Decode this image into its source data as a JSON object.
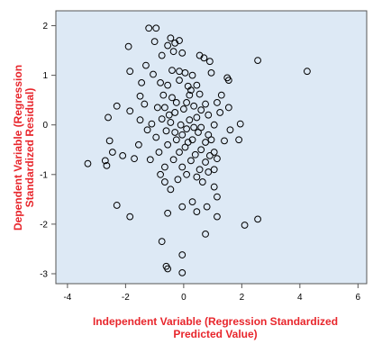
{
  "chart_data": {
    "type": "scatter",
    "title": "",
    "xlabel_lines": [
      "Independent Variable (Regression Standardized",
      "Predicted Value)"
    ],
    "ylabel_lines": [
      "Dependent Variable (Regression",
      "Standardized Residual)"
    ],
    "xlim": [
      -4.4,
      6.3
    ],
    "ylim": [
      -3.2,
      2.3
    ],
    "xticks": [
      -4,
      -2,
      0,
      2,
      4,
      6
    ],
    "yticks": [
      -3,
      -2,
      -1,
      0,
      1,
      2
    ],
    "x_tick_labels": [
      "-4",
      "-2",
      "0",
      "2",
      "4",
      "6"
    ],
    "y_tick_labels": [
      "-3",
      "-2",
      "-1",
      "0",
      "1",
      "2"
    ],
    "grid": false,
    "legend": false,
    "colors": {
      "plot_background": "#dde9f5",
      "marker": "#000000",
      "axis_title": "#e8262c"
    },
    "series": [
      {
        "marker": "hollow-circle",
        "points": [
          [
            -1.2,
            1.95
          ],
          [
            -0.95,
            1.95
          ],
          [
            -0.45,
            1.75
          ],
          [
            -0.15,
            1.7
          ],
          [
            -0.3,
            1.65
          ],
          [
            -1.9,
            1.58
          ],
          [
            -1.0,
            1.68
          ],
          [
            -0.55,
            1.6
          ],
          [
            -1.3,
            1.2
          ],
          [
            -0.75,
            1.4
          ],
          [
            -0.35,
            1.48
          ],
          [
            -0.05,
            1.45
          ],
          [
            0.55,
            1.4
          ],
          [
            0.7,
            1.35
          ],
          [
            0.9,
            1.28
          ],
          [
            2.55,
            1.3
          ],
          [
            4.25,
            1.08
          ],
          [
            1.5,
            0.95
          ],
          [
            1.55,
            0.9
          ],
          [
            -1.85,
            1.08
          ],
          [
            -1.05,
            1.02
          ],
          [
            -0.4,
            1.1
          ],
          [
            -0.15,
            1.08
          ],
          [
            0.05,
            1.05
          ],
          [
            0.3,
            1.0
          ],
          [
            0.95,
            1.05
          ],
          [
            -1.45,
            0.85
          ],
          [
            -0.8,
            0.85
          ],
          [
            -0.55,
            0.8
          ],
          [
            0.15,
            0.78
          ],
          [
            0.45,
            0.8
          ],
          [
            -1.5,
            0.58
          ],
          [
            -0.7,
            0.6
          ],
          [
            -0.4,
            0.55
          ],
          [
            0.2,
            0.6
          ],
          [
            0.55,
            0.62
          ],
          [
            1.3,
            0.6
          ],
          [
            -2.3,
            0.38
          ],
          [
            -1.35,
            0.42
          ],
          [
            -0.9,
            0.35
          ],
          [
            -0.25,
            0.45
          ],
          [
            0.0,
            0.32
          ],
          [
            0.35,
            0.38
          ],
          [
            0.75,
            0.42
          ],
          [
            1.15,
            0.45
          ],
          [
            1.55,
            0.35
          ],
          [
            -1.85,
            0.28
          ],
          [
            -2.6,
            0.15
          ],
          [
            -1.5,
            0.1
          ],
          [
            -0.75,
            0.12
          ],
          [
            0.45,
            0.15
          ],
          [
            0.85,
            0.2
          ],
          [
            1.25,
            0.25
          ],
          [
            -1.1,
            0.02
          ],
          [
            -0.45,
            0.05
          ],
          [
            -0.1,
            0.0
          ],
          [
            0.2,
            0.1
          ],
          [
            0.6,
            -0.05
          ],
          [
            1.05,
            0.0
          ],
          [
            1.95,
            0.02
          ],
          [
            -1.25,
            -0.1
          ],
          [
            -0.6,
            -0.12
          ],
          [
            0.1,
            -0.08
          ],
          [
            0.5,
            -0.15
          ],
          [
            0.85,
            -0.2
          ],
          [
            1.6,
            -0.1
          ],
          [
            -0.95,
            -0.25
          ],
          [
            -0.25,
            -0.3
          ],
          [
            0.3,
            -0.3
          ],
          [
            0.75,
            -0.35
          ],
          [
            1.4,
            -0.32
          ],
          [
            1.9,
            -0.3
          ],
          [
            -2.55,
            -0.32
          ],
          [
            -1.55,
            -0.4
          ],
          [
            -0.55,
            -0.4
          ],
          [
            0.05,
            -0.45
          ],
          [
            0.6,
            -0.5
          ],
          [
            1.05,
            -0.55
          ],
          [
            -0.85,
            -0.55
          ],
          [
            -0.15,
            -0.55
          ],
          [
            0.4,
            -0.6
          ],
          [
            0.9,
            -0.62
          ],
          [
            -2.1,
            -0.62
          ],
          [
            -2.45,
            -0.55
          ],
          [
            -1.15,
            -0.7
          ],
          [
            -0.35,
            -0.7
          ],
          [
            0.25,
            -0.72
          ],
          [
            0.75,
            -0.75
          ],
          [
            1.15,
            -0.68
          ],
          [
            -3.3,
            -0.78
          ],
          [
            -2.7,
            -0.72
          ],
          [
            -2.65,
            -0.82
          ],
          [
            -1.7,
            -0.68
          ],
          [
            -0.65,
            -0.85
          ],
          [
            -0.05,
            -0.85
          ],
          [
            0.55,
            -0.9
          ],
          [
            1.05,
            -0.9
          ],
          [
            -0.8,
            -1.0
          ],
          [
            0.1,
            -1.0
          ],
          [
            0.45,
            -1.05
          ],
          [
            0.85,
            -0.95
          ],
          [
            -0.65,
            -1.15
          ],
          [
            -0.2,
            -1.1
          ],
          [
            0.65,
            -1.15
          ],
          [
            -0.45,
            -1.3
          ],
          [
            1.05,
            -1.25
          ],
          [
            1.15,
            -1.45
          ],
          [
            0.3,
            -1.55
          ],
          [
            -0.05,
            -1.65
          ],
          [
            0.8,
            -1.65
          ],
          [
            -0.55,
            -1.78
          ],
          [
            -2.3,
            -1.62
          ],
          [
            -1.85,
            -1.85
          ],
          [
            0.45,
            -1.75
          ],
          [
            1.15,
            -1.85
          ],
          [
            2.1,
            -2.02
          ],
          [
            2.55,
            -1.9
          ],
          [
            0.75,
            -2.2
          ],
          [
            -0.75,
            -2.35
          ],
          [
            -0.05,
            -2.62
          ],
          [
            -0.6,
            -2.85
          ],
          [
            -0.55,
            -2.9
          ],
          [
            -0.05,
            -2.98
          ],
          [
            -0.3,
            0.25
          ],
          [
            0.1,
            0.45
          ],
          [
            -0.05,
            -0.2
          ],
          [
            0.35,
            -0.05
          ],
          [
            -0.5,
            0.2
          ],
          [
            0.6,
            0.3
          ],
          [
            -0.3,
            -0.15
          ],
          [
            0.15,
            -0.35
          ],
          [
            -0.65,
            0.35
          ],
          [
            0.95,
            -0.3
          ],
          [
            0.25,
            0.7
          ],
          [
            -0.15,
            0.9
          ]
        ]
      }
    ]
  }
}
